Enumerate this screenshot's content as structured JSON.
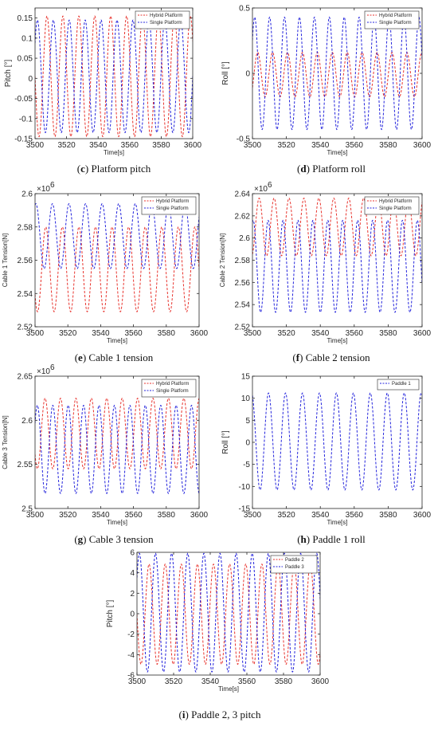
{
  "colors": {
    "red": "#e8332d",
    "blue": "#2323dc",
    "axis": "#262626"
  },
  "panels": [
    {
      "id": "c",
      "caption_letter": "c",
      "caption_text": " Platform pitch",
      "chart_data": {
        "type": "line",
        "xlabel": "Time[s]",
        "ylabel": "Pitch [°]",
        "xlim": [
          3500,
          3600
        ],
        "ylim": [
          -0.15,
          0.175
        ],
        "xticks": [
          "3500",
          "3520",
          "3540",
          "3560",
          "3580",
          "3600"
        ],
        "yticks": [
          "-0.15",
          "-0.1",
          "-0.05",
          "0",
          "0.05",
          "0.1",
          "0.15"
        ],
        "legend_position": "top-right",
        "series": [
          {
            "name": "Hybrid Platform",
            "color": "red",
            "style": "dashed",
            "amplitude": 0.15,
            "offset": 0.005,
            "period": 10.1,
            "phase": 0.5
          },
          {
            "name": "Single Platform",
            "color": "blue",
            "style": "dashed",
            "amplitude": 0.14,
            "offset": 0.005,
            "period": 10.1,
            "phase": 0.1
          }
        ]
      }
    },
    {
      "id": "d",
      "caption_letter": "d",
      "caption_text": " Platform roll",
      "chart_data": {
        "type": "line",
        "xlabel": "Time[s]",
        "ylabel": "Roll [°]",
        "xlim": [
          3500,
          3600
        ],
        "ylim": [
          -0.5,
          0.5
        ],
        "xticks": [
          "3500",
          "3520",
          "3540",
          "3560",
          "3580",
          "3600"
        ],
        "yticks": [
          "-0.5",
          "0",
          "0.5"
        ],
        "legend_position": "top-right",
        "series": [
          {
            "name": "Hybrid Platform",
            "color": "red",
            "style": "dashed",
            "amplitude": 0.17,
            "offset": -0.01,
            "period": 8.8,
            "phase": 0.9
          },
          {
            "name": "Single Platform",
            "color": "blue",
            "style": "dashed",
            "amplitude": 0.43,
            "offset": 0.0,
            "period": 8.8,
            "phase": 0.1
          }
        ]
      }
    },
    {
      "id": "e",
      "caption_letter": "e",
      "caption_text": " Cable 1 tension",
      "chart_data": {
        "type": "line",
        "xlabel": "Time[s]",
        "ylabel": "Cable 1 Tension[N]",
        "y_exponent": "6",
        "xlim": [
          3500,
          3600
        ],
        "ylim": [
          2.52,
          2.6
        ],
        "xticks": [
          "3500",
          "3520",
          "3540",
          "3560",
          "3580",
          "3600"
        ],
        "yticks": [
          "2.52",
          "2.54",
          "2.56",
          "2.58",
          "2.6"
        ],
        "legend_position": "top-right",
        "series": [
          {
            "name": "Hybrid Platform",
            "color": "red",
            "style": "dashed",
            "amplitude": 0.0255,
            "offset": 2.5545,
            "period": 10.1,
            "phase": 0.6
          },
          {
            "name": "Single Platform",
            "color": "blue",
            "style": "dashed",
            "amplitude": 0.0195,
            "offset": 2.5745,
            "period": 10.1,
            "phase": 0.2
          }
        ]
      }
    },
    {
      "id": "f",
      "caption_letter": "f",
      "caption_text": " Cable 2 tension",
      "chart_data": {
        "type": "line",
        "xlabel": "Time[s]",
        "ylabel": "Cable 2 Tension[N]",
        "y_exponent": "6",
        "xlim": [
          3500,
          3600
        ],
        "ylim": [
          2.52,
          2.64
        ],
        "xticks": [
          "3500",
          "3520",
          "3540",
          "3560",
          "3580",
          "3600"
        ],
        "yticks": [
          "2.52",
          "2.54",
          "2.56",
          "2.58",
          "2.6",
          "2.62",
          "2.64"
        ],
        "legend_position": "top-right",
        "series": [
          {
            "name": "Hybrid Platform",
            "color": "red",
            "style": "dashed",
            "amplitude": 0.026,
            "offset": 2.61,
            "period": 8.8,
            "phase": 0.8
          },
          {
            "name": "Single Platform",
            "color": "blue",
            "style": "dashed",
            "amplitude": 0.0415,
            "offset": 2.5745,
            "period": 8.8,
            "phase": 0.2
          }
        ]
      }
    },
    {
      "id": "g",
      "caption_letter": "g",
      "caption_text": " Cable 3 tension",
      "chart_data": {
        "type": "line",
        "xlabel": "Time[s]",
        "ylabel": "Cable 3 Tension[N]",
        "y_exponent": "6",
        "xlim": [
          3500,
          3600
        ],
        "ylim": [
          2.5,
          2.65
        ],
        "xticks": [
          "3500",
          "3520",
          "3540",
          "3560",
          "3580",
          "3600"
        ],
        "yticks": [
          "2.5",
          "2.55",
          "2.6",
          "2.65"
        ],
        "legend_position": "top-right",
        "series": [
          {
            "name": "Hybrid Platform",
            "color": "red",
            "style": "dashed",
            "amplitude": 0.04,
            "offset": 2.585,
            "period": 9.4,
            "phase": 0.6
          },
          {
            "name": "Single Platform",
            "color": "blue",
            "style": "dashed",
            "amplitude": 0.05,
            "offset": 2.567,
            "period": 9.4,
            "phase": 0.1
          }
        ]
      }
    },
    {
      "id": "h",
      "caption_letter": "h",
      "caption_text": " Paddle 1 roll",
      "chart_data": {
        "type": "line",
        "xlabel": "Time[s]",
        "ylabel": "Roll [°]",
        "xlim": [
          3500,
          3600
        ],
        "ylim": [
          -15,
          15
        ],
        "xticks": [
          "3500",
          "3520",
          "3540",
          "3560",
          "3580",
          "3600"
        ],
        "yticks": [
          "-15",
          "-10",
          "-5",
          "0",
          "5",
          "10",
          "15"
        ],
        "legend_position": "top-right",
        "series": [
          {
            "name": "Paddle 1",
            "color": "blue",
            "style": "dashed",
            "amplitude": 11,
            "offset": 0.2,
            "period": 10.0,
            "phase": 0.3
          }
        ]
      }
    },
    {
      "id": "i",
      "caption_letter": "i",
      "caption_text": " Paddle 2, 3 pitch",
      "chart_data": {
        "type": "line",
        "xlabel": "Time[s]",
        "ylabel": "Pitch [°]",
        "xlim": [
          3500,
          3600
        ],
        "ylim": [
          -6,
          6
        ],
        "xticks": [
          "3500",
          "3520",
          "3540",
          "3560",
          "3580",
          "3600"
        ],
        "yticks": [
          "-6",
          "-4",
          "-2",
          "0",
          "2",
          "4",
          "6"
        ],
        "legend_position": "top-right",
        "series": [
          {
            "name": "Paddle 2",
            "color": "red",
            "style": "dashed",
            "amplitude": 4.9,
            "offset": -0.05,
            "period": 8.8,
            "phase": 0.5
          },
          {
            "name": "Paddle 3",
            "color": "blue",
            "style": "dashed",
            "amplitude": 5.8,
            "offset": 0.1,
            "period": 8.8,
            "phase": 0.1
          }
        ]
      }
    }
  ]
}
